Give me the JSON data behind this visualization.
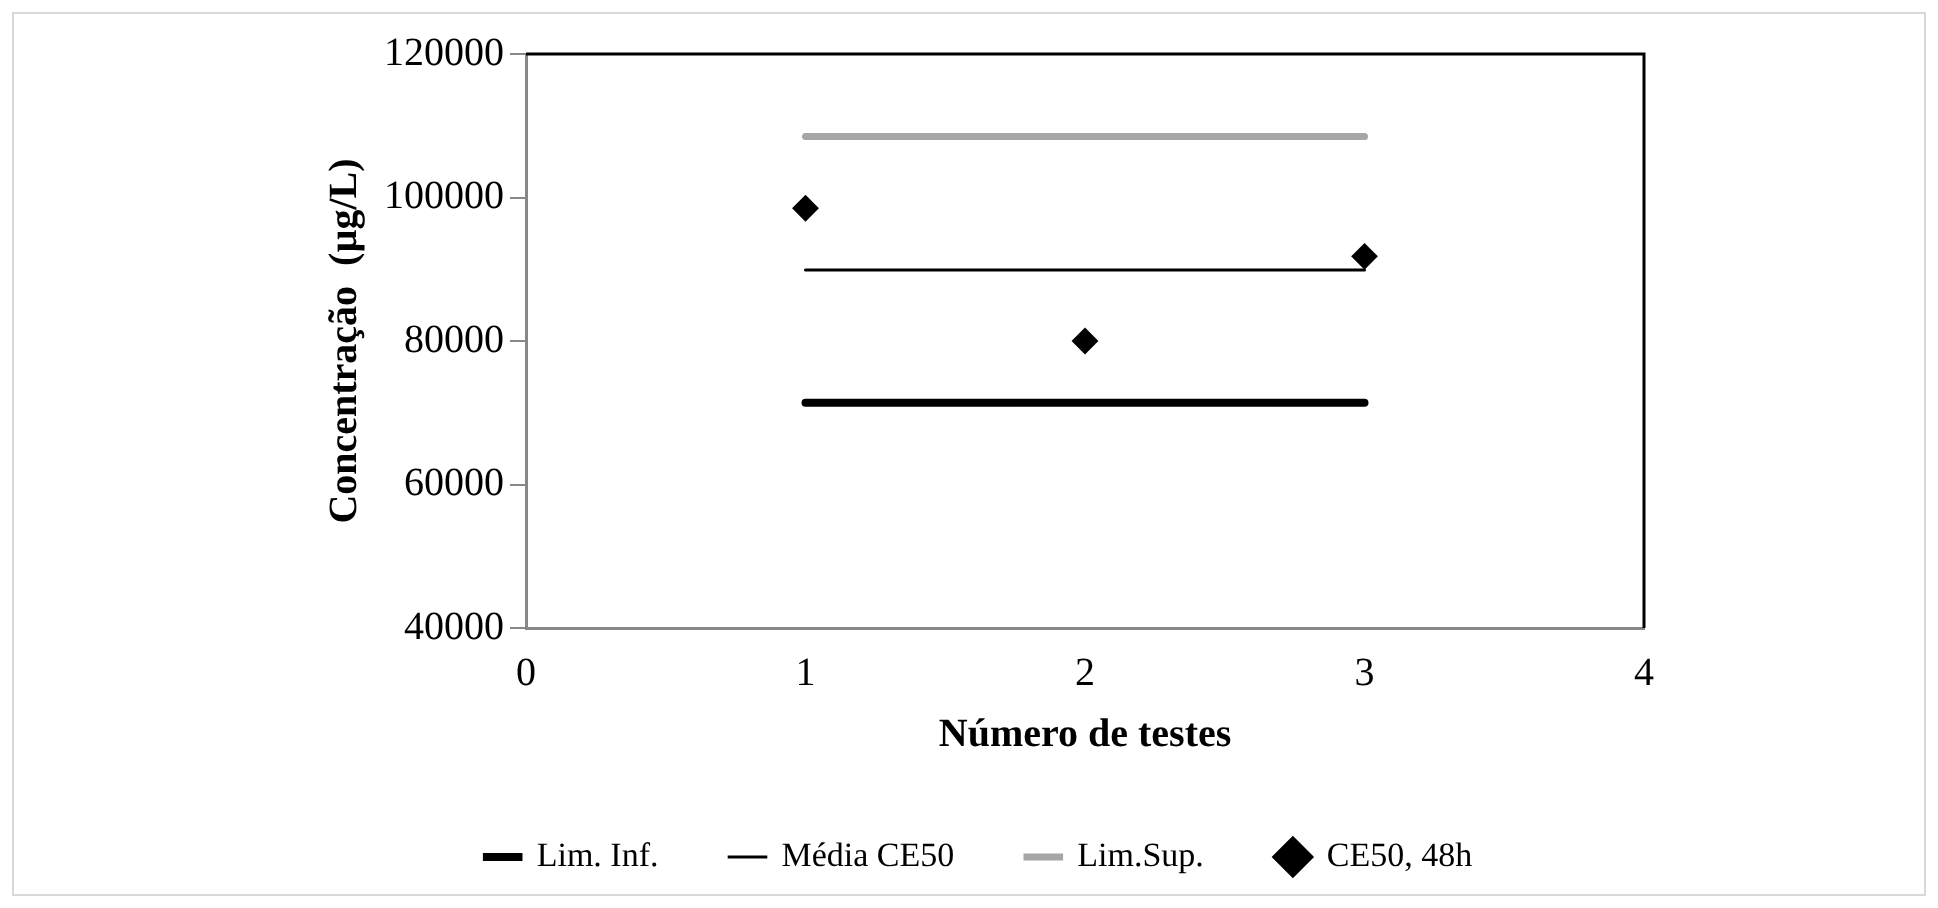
{
  "chart_data": {
    "type": "line",
    "xlabel": "Número de testes",
    "ylabel": "Concentração  (µg/L)",
    "xlim": [
      0,
      4
    ],
    "xticks": [
      0,
      1,
      2,
      3,
      4
    ],
    "ylim": [
      40000,
      120000
    ],
    "yticks": [
      40000,
      60000,
      80000,
      100000,
      120000
    ],
    "grid": false,
    "legend": "bottom",
    "series": [
      {
        "name": "Lim. Inf.",
        "color": "#000000",
        "x": [
          1,
          3
        ],
        "values": [
          71400,
          71400
        ],
        "marker": "none"
      },
      {
        "name": "Média CE50",
        "color": "#000000",
        "x": [
          1,
          3
        ],
        "values": [
          89900,
          89900
        ],
        "marker": "none"
      },
      {
        "name": "Lim.Sup.",
        "color": "#a6a6a6",
        "x": [
          1,
          3
        ],
        "values": [
          108500,
          108500
        ],
        "marker": "none"
      },
      {
        "name": "CE50, 48h",
        "type": "scatter",
        "color": "#000000",
        "x": [
          1,
          2,
          3
        ],
        "values": [
          98500,
          80000,
          91800
        ],
        "marker": "diamond"
      }
    ]
  }
}
